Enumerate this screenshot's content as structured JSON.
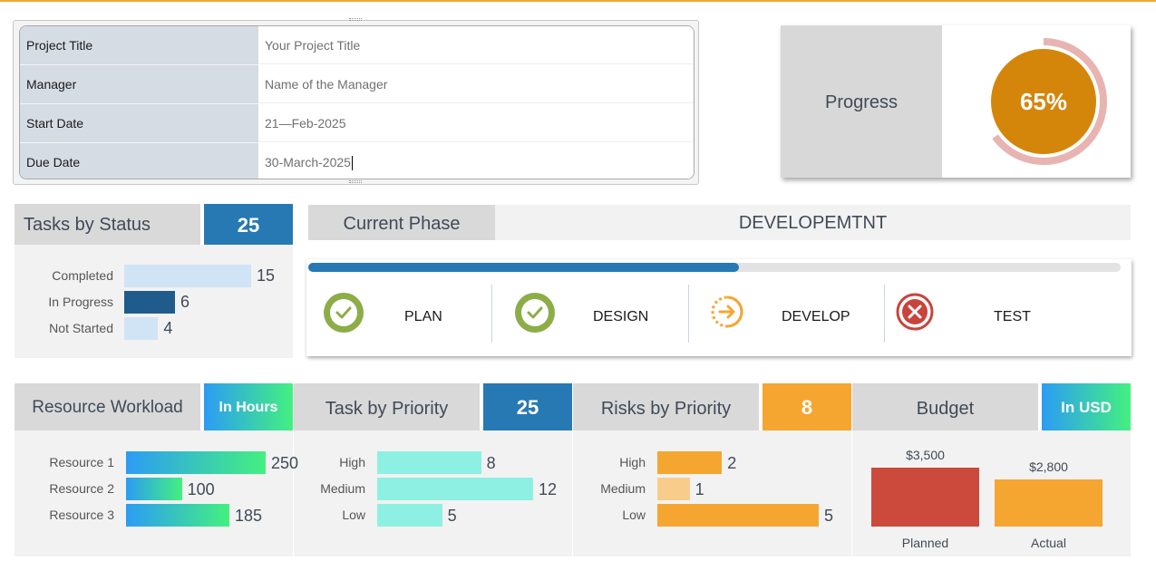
{
  "project_info": {
    "rows": [
      {
        "label": "Project Title",
        "value": "Your Project Title"
      },
      {
        "label": "Manager",
        "value": "Name of the Manager"
      },
      {
        "label": "Start Date",
        "value": "21—Feb-2025"
      },
      {
        "label": "Due Date",
        "value": "30-March-2025"
      }
    ]
  },
  "progress": {
    "label": "Progress",
    "value_text": "65%",
    "fraction": 0.65
  },
  "tasks_by_status": {
    "title": "Tasks by Status",
    "total": "25",
    "items": [
      {
        "label": "Completed",
        "value": 15
      },
      {
        "label": "In Progress",
        "value": 6
      },
      {
        "label": "Not Started",
        "value": 4
      }
    ]
  },
  "current_phase": {
    "title": "Current Phase",
    "name": "DEVELOPEMTNT",
    "progress_fraction": 0.53,
    "phases": [
      {
        "label": "PLAN",
        "status": "done",
        "icon": "check-circle-icon"
      },
      {
        "label": "DESIGN",
        "status": "done",
        "icon": "check-circle-icon"
      },
      {
        "label": "DEVELOP",
        "status": "in-progress",
        "icon": "arrow-circle-icon"
      },
      {
        "label": "TEST",
        "status": "not-started",
        "icon": "x-circle-icon"
      }
    ]
  },
  "resource_workload": {
    "title": "Resource Workload",
    "unit": "In Hours",
    "items": [
      {
        "label": "Resource 1",
        "value": 250
      },
      {
        "label": "Resource 2",
        "value": 100
      },
      {
        "label": "Resource 3",
        "value": 185
      }
    ]
  },
  "task_priority": {
    "title": "Task by Priority",
    "total": "25",
    "items": [
      {
        "label": "High",
        "value": 8
      },
      {
        "label": "Medium",
        "value": 12
      },
      {
        "label": "Low",
        "value": 5
      }
    ]
  },
  "risk_priority": {
    "title": "Risks by Priority",
    "total": "8",
    "items": [
      {
        "label": "High",
        "value": 2
      },
      {
        "label": "Medium",
        "value": 1
      },
      {
        "label": "Low",
        "value": 5
      }
    ]
  },
  "budget": {
    "title": "Budget",
    "unit": "In USD",
    "items": [
      {
        "label": "Planned",
        "value": 3500,
        "value_text": "$3,500"
      },
      {
        "label": "Actual",
        "value": 2800,
        "value_text": "$2,800"
      }
    ]
  },
  "colors": {
    "accent_blue": "#2779b4",
    "accent_orange": "#f5a631",
    "progress_orange": "#d4860b",
    "ring_pink": "#e8b4b2",
    "status_completed": "#d0e4f5",
    "status_in_progress": "#1f5c8c",
    "status_not_started": "#d0e4f5",
    "priority_bar": "#8ef0e2",
    "risk_high": "#f5a631",
    "risk_medium": "#f8cd8b",
    "risk_low": "#f5a631",
    "budget_planned": "#cc4a3b",
    "budget_actual": "#f5a631",
    "check_green": "#8cad48",
    "in_progress_orange": "#f5a631",
    "x_red": "#c9443b"
  }
}
